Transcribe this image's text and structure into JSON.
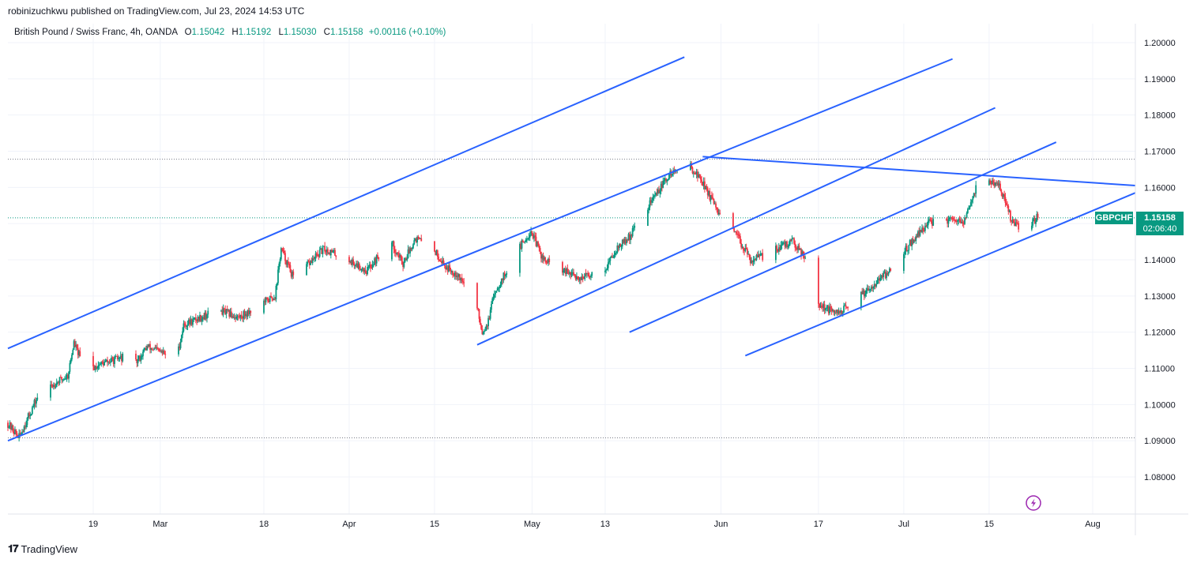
{
  "header": {
    "publisher_line": "robinizuchkwu published on TradingView.com, Jul 23, 2024 14:53 UTC"
  },
  "legend": {
    "title": "British Pound / Swiss Franc, 4h, OANDA",
    "o_label": "O",
    "o_value": "1.15042",
    "h_label": "H",
    "h_value": "1.15192",
    "l_label": "L",
    "l_value": "1.15030",
    "c_label": "C",
    "c_value": "1.15158",
    "change": "+0.00116 (+0.10%)"
  },
  "price_tag": {
    "symbol": "GBPCHF",
    "price": "1.15158",
    "countdown": "02:06:40",
    "color": "#089981"
  },
  "footer": {
    "brand": "TradingView",
    "logo": "tradingview-logo-icon"
  },
  "colors": {
    "up": "#089981",
    "down": "#f23645",
    "trendline": "#2962ff",
    "grid": "#f0f3fa"
  },
  "chart_data": {
    "type": "candlestick",
    "symbol": "GBPCHF",
    "interval": "4h",
    "ylim": [
      1.07,
      1.205
    ],
    "y_ticks": [
      "1.20000",
      "1.19000",
      "1.18000",
      "1.17000",
      "1.16000",
      "1.15000",
      "1.14000",
      "1.13000",
      "1.12000",
      "1.11000",
      "1.10000",
      "1.09000",
      "1.08000"
    ],
    "x_ticks": [
      "19",
      "Mar",
      "18",
      "Apr",
      "15",
      "May",
      "13",
      "Jun",
      "17",
      "Jul",
      "15",
      "Aug"
    ],
    "x_tick_dates": [
      "2024-02-19",
      "2024-03-01",
      "2024-03-18",
      "2024-04-01",
      "2024-04-15",
      "2024-05-01",
      "2024-05-13",
      "2024-06-01",
      "2024-06-17",
      "2024-07-01",
      "2024-07-15",
      "2024-08-01"
    ],
    "x_range": [
      "2024-02-05",
      "2024-08-08"
    ],
    "price_path": [
      [
        "2024-02-05",
        1.095
      ],
      [
        "2024-02-07",
        1.091
      ],
      [
        "2024-02-10",
        1.102
      ],
      [
        "2024-02-13",
        1.106
      ],
      [
        "2024-02-15",
        1.108
      ],
      [
        "2024-02-16",
        1.117
      ],
      [
        "2024-02-18",
        1.109
      ],
      [
        "2024-02-20",
        1.111
      ],
      [
        "2024-02-24",
        1.113
      ],
      [
        "2024-02-26",
        1.111
      ],
      [
        "2024-02-28",
        1.116
      ],
      [
        "2024-03-02",
        1.114
      ],
      [
        "2024-03-04",
        1.114
      ],
      [
        "2024-03-05",
        1.122
      ],
      [
        "2024-03-09",
        1.125
      ],
      [
        "2024-03-11",
        1.126
      ],
      [
        "2024-03-14",
        1.124
      ],
      [
        "2024-03-18",
        1.128
      ],
      [
        "2024-03-20",
        1.13
      ],
      [
        "2024-03-21",
        1.143
      ],
      [
        "2024-03-23",
        1.135
      ],
      [
        "2024-03-25",
        1.138
      ],
      [
        "2024-03-28",
        1.143
      ],
      [
        "2024-04-01",
        1.14
      ],
      [
        "2024-04-04",
        1.137
      ],
      [
        "2024-04-08",
        1.145
      ],
      [
        "2024-04-10",
        1.139
      ],
      [
        "2024-04-12",
        1.146
      ],
      [
        "2024-04-15",
        1.143
      ],
      [
        "2024-04-17",
        1.138
      ],
      [
        "2024-04-19",
        1.136
      ],
      [
        "2024-04-22",
        1.128
      ],
      [
        "2024-04-23",
        1.12
      ],
      [
        "2024-04-24",
        1.123
      ],
      [
        "2024-04-25",
        1.131
      ],
      [
        "2024-04-29",
        1.143
      ],
      [
        "2024-05-01",
        1.148
      ],
      [
        "2024-05-03",
        1.14
      ],
      [
        "2024-05-06",
        1.137
      ],
      [
        "2024-05-09",
        1.135
      ],
      [
        "2024-05-13",
        1.137
      ],
      [
        "2024-05-15",
        1.143
      ],
      [
        "2024-05-17",
        1.146
      ],
      [
        "2024-05-21",
        1.157
      ],
      [
        "2024-05-24",
        1.164
      ],
      [
        "2024-05-27",
        1.166
      ],
      [
        "2024-05-29",
        1.162
      ],
      [
        "2024-06-01",
        1.152
      ],
      [
        "2024-06-04",
        1.146
      ],
      [
        "2024-06-06",
        1.14
      ],
      [
        "2024-06-08",
        1.141
      ],
      [
        "2024-06-10",
        1.143
      ],
      [
        "2024-06-13",
        1.145
      ],
      [
        "2024-06-15",
        1.141
      ],
      [
        "2024-06-17",
        1.128
      ],
      [
        "2024-06-20",
        1.125
      ],
      [
        "2024-06-22",
        1.127
      ],
      [
        "2024-06-26",
        1.133
      ],
      [
        "2024-06-29",
        1.137
      ],
      [
        "2024-07-02",
        1.144
      ],
      [
        "2024-07-05",
        1.15
      ],
      [
        "2024-07-08",
        1.151
      ],
      [
        "2024-07-11",
        1.15
      ],
      [
        "2024-07-13",
        1.16
      ],
      [
        "2024-07-15",
        1.162
      ],
      [
        "2024-07-17",
        1.16
      ],
      [
        "2024-07-19",
        1.15
      ],
      [
        "2024-07-21",
        1.148
      ],
      [
        "2024-07-23",
        1.15158
      ]
    ],
    "trendlines": [
      {
        "from": [
          "2024-02-05",
          1.1155
        ],
        "to": [
          "2024-05-26",
          1.196
        ]
      },
      {
        "from": [
          "2024-02-05",
          1.09
        ],
        "to": [
          "2024-07-09",
          1.1955
        ]
      },
      {
        "from": [
          "2024-04-22",
          1.1165
        ],
        "to": [
          "2024-07-16",
          1.182
        ]
      },
      {
        "from": [
          "2024-05-17",
          1.12
        ],
        "to": [
          "2024-07-26",
          1.1725
        ]
      },
      {
        "from": [
          "2024-06-05",
          1.1135
        ],
        "to": [
          "2024-08-08",
          1.1585
        ]
      },
      {
        "from": [
          "2024-05-29",
          1.1685
        ],
        "to": [
          "2024-08-08",
          1.1605
        ]
      }
    ],
    "hlines": [
      1.1678,
      1.1516,
      1.0908
    ],
    "last_price": 1.15158,
    "grid": true
  }
}
